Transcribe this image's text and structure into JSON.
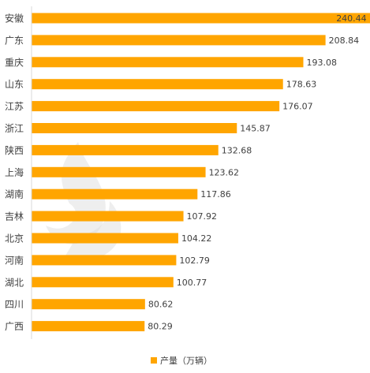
{
  "chart_data": {
    "type": "bar",
    "orientation": "horizontal",
    "categories": [
      "安徽",
      "广东",
      "重庆",
      "山东",
      "江苏",
      "浙江",
      "陕西",
      "上海",
      "湖南",
      "吉林",
      "北京",
      "河南",
      "湖北",
      "四川",
      "广西"
    ],
    "series": [
      {
        "name": "产量（万辆）",
        "values": [
          240.44,
          208.84,
          193.08,
          178.63,
          176.07,
          145.87,
          132.68,
          123.62,
          117.86,
          107.92,
          104.22,
          102.79,
          100.77,
          80.62,
          80.29
        ],
        "value_labels": [
          "240.44",
          "208.84",
          "193.08",
          "178.63",
          "176.07",
          "145.87",
          "132.68",
          "123.62",
          "117.86",
          "107.92",
          "104.22",
          "102.79",
          "100.77",
          "80.62",
          "80.29"
        ]
      }
    ],
    "xlim": [
      0,
      240.44
    ],
    "grid": false,
    "legend_position": "bottom",
    "colors": {
      "bar": "#FFA500",
      "axis": "#d9d9d9",
      "text": "#404040"
    }
  }
}
